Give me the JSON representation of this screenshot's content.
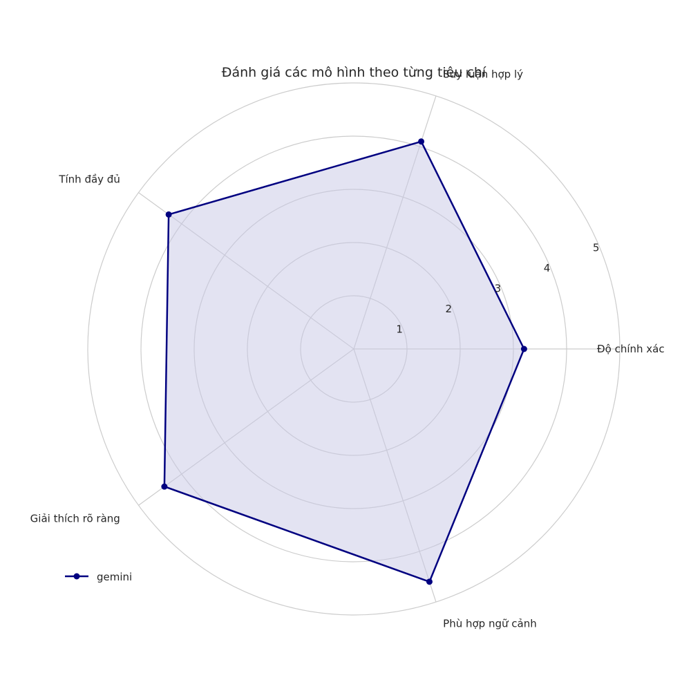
{
  "chart_data": {
    "type": "radar",
    "title": "Đánh giá các mô hình theo từng tiêu chí",
    "categories": [
      "Độ chính xác",
      "Suy luận hợp lý",
      "Tính đầy đủ",
      "Giải thích rõ ràng",
      "Phù hợp ngữ cảnh"
    ],
    "radial_ticks": [
      1,
      2,
      3,
      4,
      5
    ],
    "rlim": [
      0,
      5
    ],
    "grid": true,
    "legend_position": "lower-left",
    "series": [
      {
        "name": "gemini",
        "values": [
          3.2,
          4.1,
          4.3,
          4.4,
          4.6
        ],
        "color": "#000080",
        "fill_color": "#c8c8e6"
      }
    ]
  }
}
